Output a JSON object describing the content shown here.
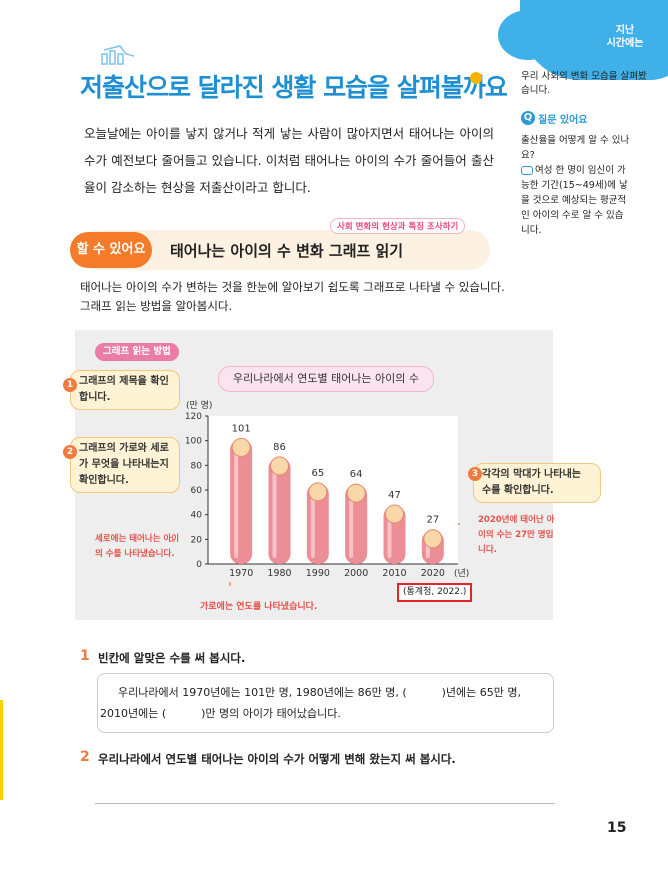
{
  "corner": {
    "line1": "지난",
    "line2": "시간에는"
  },
  "title": "저출산으로 달라진 생활 모습을 살펴볼까요",
  "intro": "오늘날에는 아이를 낳지 않거나 적게 낳는 사람이 많아지면서 태어나는 아이의 수가 예전보다 줄어들고 있습니다. 이처럼 태어나는 아이의 수가 줄어들어 출산율이 감소하는 현상을 저출산이라고 합니다.",
  "sidebar": {
    "intro": "우리 사회의 변화 모습을 살펴봤습니다.",
    "q_icon": "Q",
    "q_label": "질문 있어요",
    "question": "출산율을 어떻게 알 수 있나요?",
    "answer": "여성 한 명이 임신이 가능한 기간(15~49세)에 낳을 것으로 예상되는 평균적인 아이의 수로 알 수 있습니다."
  },
  "banner": {
    "badge": "할 수 있어요",
    "tag": "사회 변화의 현상과 특징 조사하기",
    "title": "태어나는 아이의 수 변화 그래프 읽기"
  },
  "description": "태어나는 아이의 수가 변하는 것을 한눈에 알아보기 쉽도록 그래프로 나타낼 수 있습니다. 그래프 읽는 방법을 알아봅시다.",
  "panel": {
    "label": "그래프 읽는 방법",
    "callout1": {
      "num": "1",
      "text": "그래프의 제목을 확인합니다."
    },
    "callout2": {
      "num": "2",
      "text": "그래프의 가로와 세로가 무엇을 나타내는지 확인합니다."
    },
    "callout3": {
      "num": "3",
      "text": "각각의 막대가 나타내는 수를 확인합니다."
    },
    "note_vertical": "세로에는 태어나는 아이의 수를 나타냈습니다.",
    "note_right": "2020년에 태어난 아이의 수는 27만 명입니다.",
    "note_horizontal": "가로에는 연도를 나타냈습니다.",
    "source": "(통계청, 2022.)"
  },
  "chart_data": {
    "type": "bar",
    "title": "우리나라에서 연도별 태어나는 아이의 수",
    "ylabel": "(만 명)",
    "xunit": "(년)",
    "categories": [
      "1970",
      "1980",
      "1990",
      "2000",
      "2010",
      "2020"
    ],
    "values": [
      101,
      86,
      65,
      64,
      47,
      27
    ],
    "ylim": [
      0,
      120
    ],
    "yticks": [
      0,
      20,
      40,
      60,
      80,
      100,
      120
    ],
    "grid": false
  },
  "questions": {
    "q1": {
      "num": "1",
      "text": "빈칸에 알맞은 수를 써 봅시다.",
      "line1": "우리나라에서 1970년에는 101만 명, 1980년에는 86만 명, (          )년에는 65만 명,",
      "line2": "2010년에는 (          )만 명의 아이가 태어났습니다."
    },
    "q2": {
      "num": "2",
      "text": "우리나라에서 연도별 태어나는 아이의 수가 어떻게 변해 왔는지 써 봅시다."
    }
  },
  "page_number": "15",
  "colors": {
    "title": "#1e8fd3",
    "accent": "#f27a3e",
    "bar": "#ec8e95",
    "source_border": "#e02626"
  }
}
